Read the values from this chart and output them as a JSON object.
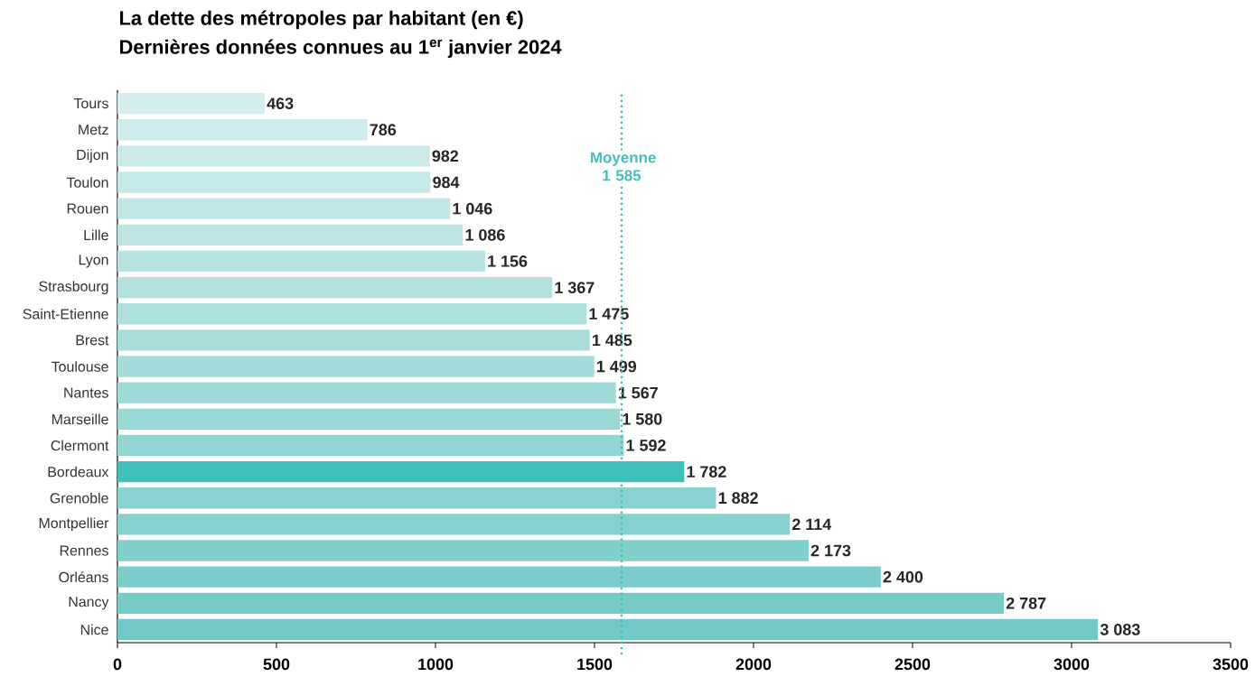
{
  "chart_data": {
    "type": "bar",
    "orientation": "horizontal",
    "title": "La dette des métropoles par habitant (en €)",
    "subtitle": "Dernières données connues au 1$^{er}$ janvier 2024",
    "categories": [
      "Tours",
      "Metz",
      "Dijon",
      "Toulon",
      "Rouen",
      "Lille",
      "Lyon",
      "Strasbourg",
      "Saint-Etienne",
      "Brest",
      "Toulouse",
      "Nantes",
      "Marseille",
      "Clermont",
      "Bordeaux",
      "Grenoble",
      "Montpellier",
      "Rennes",
      "Orléans",
      "Nancy",
      "Nice"
    ],
    "values": [
      463,
      786,
      982,
      984,
      1046,
      1086,
      1156,
      1367,
      1475,
      1485,
      1499,
      1567,
      1580,
      1592,
      1782,
      1882,
      2114,
      2173,
      2400,
      2787,
      3083
    ],
    "value_labels": [
      "463",
      "786",
      "982",
      "984",
      "1 046",
      "1 086",
      "1 156",
      "1 367",
      "1 475",
      "1 485",
      "1 499",
      "1 567",
      "1 580",
      "1 592",
      "1 782",
      "1 882",
      "2 114",
      "2 173",
      "2 400",
      "2 787",
      "3 083"
    ],
    "colors": [
      "#d4eeee",
      "#cfecec",
      "#caeaea",
      "#c5e8e8",
      "#c0e7e6",
      "#bce5e4",
      "#b7e3e2",
      "#b2e1e0",
      "#addfde",
      "#a8dddc",
      "#a3dcda",
      "#9edad7",
      "#99d8d5",
      "#94d6d3",
      "#41bfbb",
      "#8ad2cf",
      "#86d0cd",
      "#81cfcb",
      "#7ccdc9",
      "#77cbc7",
      "#72c9c5"
    ],
    "xlim": [
      0,
      3500
    ],
    "xticks": [
      0,
      500,
      1000,
      1500,
      2000,
      2500,
      3000,
      3500
    ],
    "ref_lines": [
      {
        "axis": "x",
        "value": 1585,
        "label": "Moyenne 1 585",
        "color": "#41bfbb",
        "line_style": "dotted"
      }
    ]
  }
}
